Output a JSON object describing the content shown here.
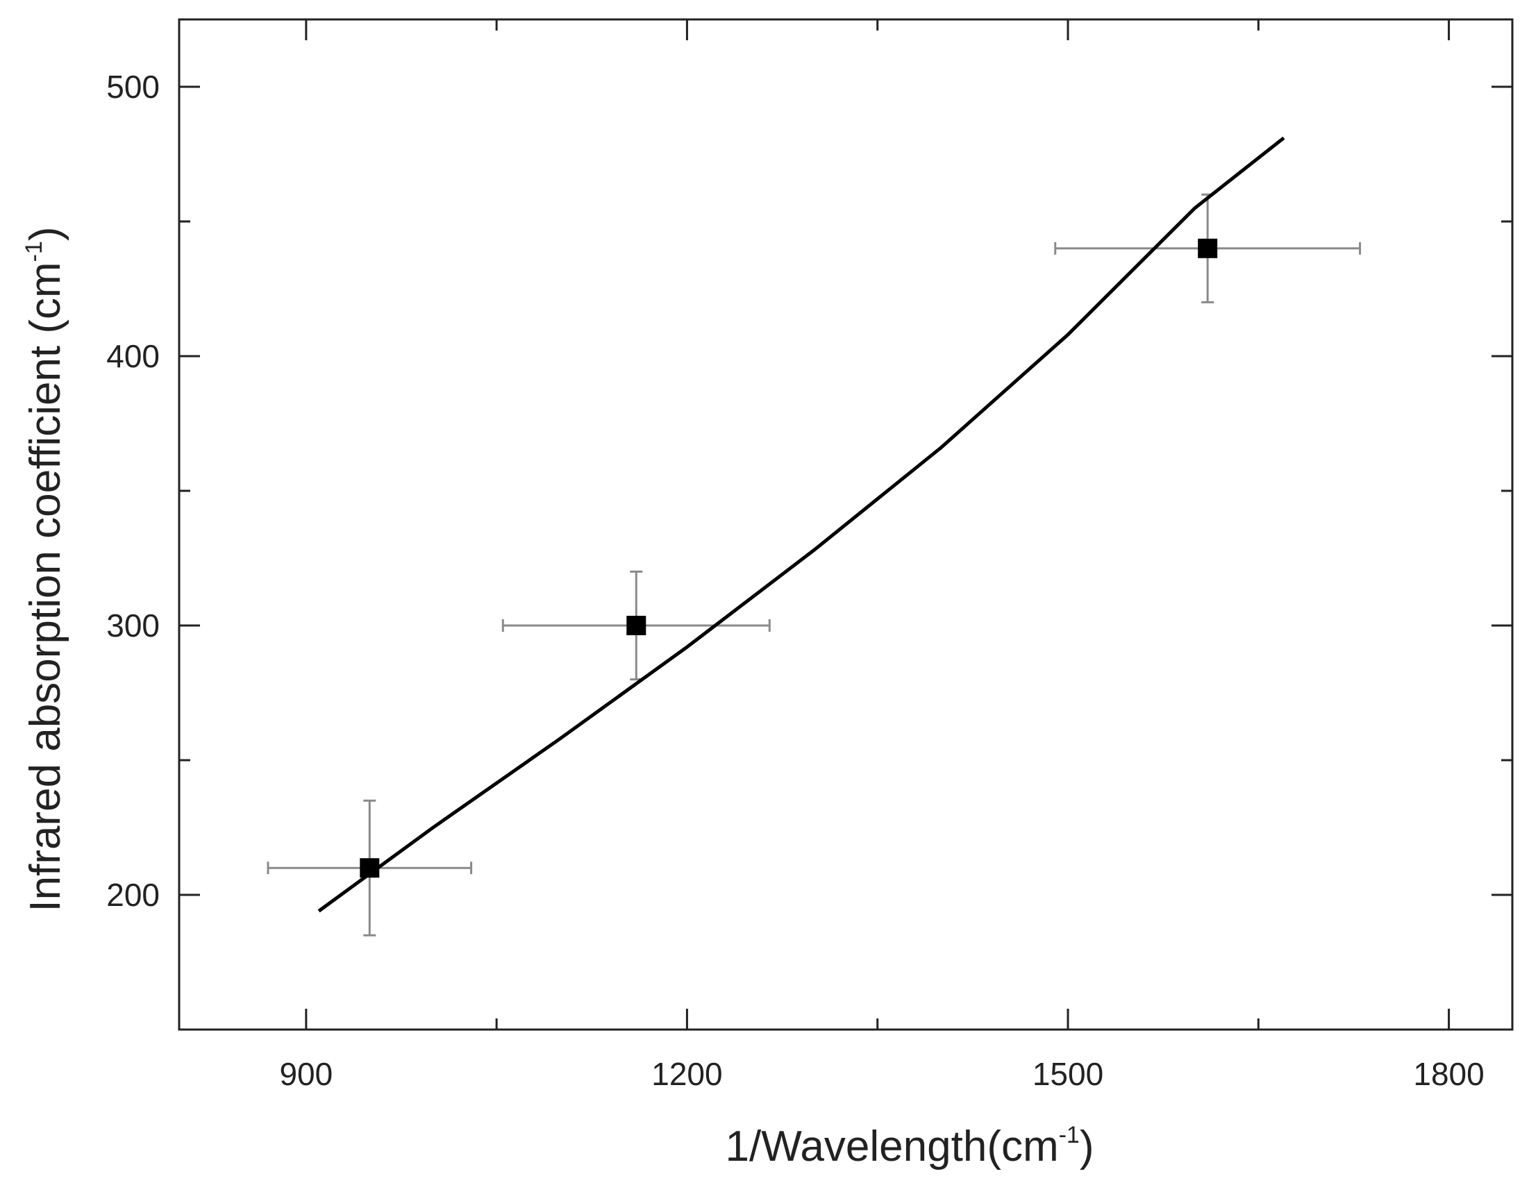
{
  "chart_data": {
    "type": "scatter",
    "xlabel": "1/Wavelength(cm",
    "xlabel_sup": "-1",
    "xlabel_tail": ")",
    "ylabel": "Infrared absorption coefficient (cm",
    "ylabel_sup": "-1",
    "ylabel_tail": ")",
    "xlim": [
      800,
      1850
    ],
    "ylim": [
      150,
      525
    ],
    "x_ticks": [
      900,
      1200,
      1500,
      1800
    ],
    "x_minor_ticks": [
      1050,
      1350,
      1650
    ],
    "y_ticks": [
      200,
      300,
      400,
      500
    ],
    "y_minor_ticks": [
      250,
      350,
      450
    ],
    "grid": false,
    "points": [
      {
        "x": 950,
        "y": 210,
        "x_err_low": 870,
        "x_err_high": 1030,
        "y_err_low": 185,
        "y_err_high": 235
      },
      {
        "x": 1160,
        "y": 300,
        "x_err_low": 1055,
        "x_err_high": 1265,
        "y_err_low": 280,
        "y_err_high": 320
      },
      {
        "x": 1610,
        "y": 440,
        "x_err_low": 1490,
        "x_err_high": 1730,
        "y_err_low": 420,
        "y_err_high": 460
      }
    ],
    "fit_line": {
      "x": [
        910,
        1000,
        1100,
        1200,
        1300,
        1400,
        1500,
        1600,
        1670
      ],
      "y": [
        194,
        225,
        258,
        292,
        328,
        366,
        408,
        455,
        481
      ]
    },
    "colors": {
      "marker": "#000000",
      "line": "#000000",
      "error_bar": "#8a8a8a",
      "axis": "#222222"
    }
  }
}
